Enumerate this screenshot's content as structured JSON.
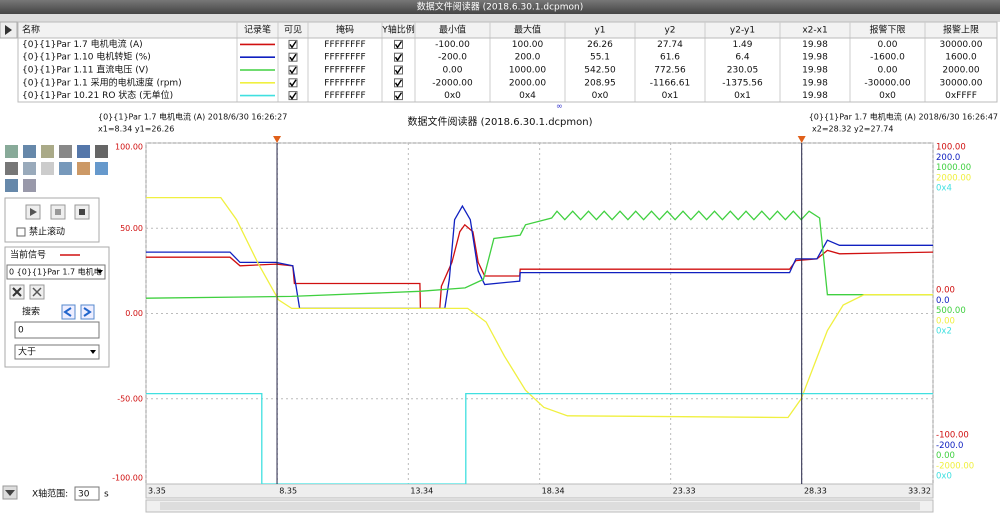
{
  "window": {
    "title": "数据文件阅读器 (2018.6.30.1.dcpmon)"
  },
  "table": {
    "columns": [
      "名称",
      "记录笔",
      "可见",
      "掩码",
      "Y轴比例",
      "最小值",
      "最大值",
      "y1",
      "y2",
      "y2-y1",
      "x2-x1",
      "报警下限",
      "报警上限"
    ],
    "rows": [
      {
        "name": "{0}{1}Par 1.7 电机电流 (A)",
        "color": "#d01010",
        "visible": true,
        "mask": "FFFFFFFF",
        "y_scale": true,
        "min": "-100.00",
        "max": "100.00",
        "y1": "26.26",
        "y2": "27.74",
        "dy": "1.49",
        "dx": "19.98",
        "alarm_low": "0.00",
        "alarm_high": "30000.00"
      },
      {
        "name": "{0}{1}Par 1.10 电机转矩 (%)",
        "color": "#1020c0",
        "visible": true,
        "mask": "FFFFFFFF",
        "y_scale": true,
        "min": "-200.0",
        "max": "200.0",
        "y1": "55.1",
        "y2": "61.6",
        "dy": "6.4",
        "dx": "19.98",
        "alarm_low": "-1600.0",
        "alarm_high": "1600.0"
      },
      {
        "name": "{0}{1}Par 1.11 直流电压 (V)",
        "color": "#40d040",
        "visible": true,
        "mask": "FFFFFFFF",
        "y_scale": true,
        "min": "0.00",
        "max": "1000.00",
        "y1": "542.50",
        "y2": "772.56",
        "dy": "230.05",
        "dx": "19.98",
        "alarm_low": "0.00",
        "alarm_high": "2000.00"
      },
      {
        "name": "{0}{1}Par 1.1 采用的电机速度 (rpm)",
        "color": "#f0f040",
        "visible": true,
        "mask": "FFFFFFFF",
        "y_scale": true,
        "min": "-2000.00",
        "max": "2000.00",
        "y1": "208.95",
        "y2": "-1166.61",
        "dy": "-1375.56",
        "dx": "19.98",
        "alarm_low": "-30000.00",
        "alarm_high": "30000.00"
      },
      {
        "name": "{0}{1}Par 10.21 RO 状态 (无单位)",
        "color": "#40e0e0",
        "visible": true,
        "mask": "FFFFFFFF",
        "y_scale": true,
        "min": "0x0",
        "max": "0x4",
        "y1": "0x0",
        "y2": "0x1",
        "dy": "0x1",
        "dx": "19.98",
        "alarm_low": "0x0",
        "alarm_high": "0xFFFF"
      }
    ]
  },
  "plot": {
    "title": "数据文件阅读器 (2018.6.30.1.dcpmon)",
    "cursor1": {
      "label": "{0}{1}Par 1.7 电机电流 (A) 2018/6/30 16:26:27",
      "readout": "x1=8.34 y1=26.26",
      "x": 8.34
    },
    "cursor2": {
      "label": "{0}{1}Par 1.7 电机电流 (A) 2018/6/30 16:26:47",
      "readout": "x2=28.32 y2=27.74",
      "x": 28.32
    },
    "xlim": [
      3.35,
      33.32
    ],
    "ylim": [
      -100,
      100
    ],
    "xticks": [
      3.35,
      8.35,
      13.34,
      18.34,
      23.33,
      28.33,
      33.32
    ],
    "yticks": [
      {
        "value": 100,
        "label": "100.00"
      },
      {
        "value": 50,
        "label": "50.00"
      },
      {
        "value": 0,
        "label": "0.00"
      },
      {
        "value": -50,
        "label": "-50.00"
      },
      {
        "value": -100,
        "label": "-100.00"
      }
    ],
    "traces": [
      {
        "axis_top": "100.00",
        "axis_mid": "0.00",
        "axis_bottom": "-100.00",
        "x": [
          3.35,
          6.55,
          6.93,
          8.3,
          8.94,
          9.0,
          13.78,
          13.8,
          14.54,
          14.6,
          15.0,
          15.3,
          15.49,
          15.8,
          16.0,
          16.25,
          17.58,
          17.6,
          27.86,
          28.1,
          28.9,
          29.3,
          29.76,
          33.32
        ],
        "y": [
          33,
          33,
          28,
          29,
          28,
          17.6,
          17.6,
          3,
          3,
          16,
          30,
          48,
          52,
          48,
          30,
          22,
          22,
          26,
          26,
          31,
          32,
          37,
          35,
          36
        ]
      },
      {
        "axis_top": "200.0",
        "axis_mid": "0.0",
        "axis_bottom": "-200.0",
        "x": [
          3.35,
          6.55,
          6.93,
          8.3,
          8.94,
          9.2,
          14.73,
          14.9,
          15.1,
          15.4,
          15.7,
          16.0,
          16.25,
          17.58,
          17.6,
          27.86,
          28.1,
          28.9,
          29.3,
          29.76,
          33.32
        ],
        "y": [
          36,
          36,
          30,
          30,
          28,
          3,
          3,
          20,
          55,
          63,
          55,
          25,
          17,
          19,
          24,
          24,
          32,
          32,
          43,
          40,
          40
        ]
      },
      {
        "axis_top": "1000.00",
        "axis_mid": "500.00",
        "axis_bottom": "0.00",
        "x": [
          3.35,
          8.9,
          13.78,
          15.5,
          16.2,
          16.6,
          17.6,
          17.8,
          18.8,
          19.0,
          19.3,
          19.6,
          19.9,
          20.2,
          20.5,
          20.8,
          21.1,
          21.4,
          21.7,
          22.0,
          22.3,
          22.6,
          22.9,
          23.2,
          23.5,
          23.8,
          24.1,
          24.4,
          24.7,
          25.0,
          25.3,
          25.6,
          25.9,
          26.2,
          26.5,
          26.8,
          27.1,
          27.4,
          27.7,
          28.0,
          28.3,
          28.6,
          29.0,
          29.3,
          33.32
        ],
        "y": [
          9,
          10,
          13,
          15,
          20,
          44,
          46,
          52,
          56,
          60,
          55,
          60,
          55,
          60,
          55,
          60,
          55,
          60,
          55,
          60,
          55,
          60,
          55,
          60,
          55,
          60,
          55,
          60,
          55,
          60,
          55,
          60,
          55,
          60,
          55,
          60,
          55,
          60,
          55,
          60,
          55,
          60,
          56,
          11,
          11
        ]
      },
      {
        "axis_top": "2000.00",
        "axis_mid": "0.00",
        "axis_bottom": "-2000.00",
        "x": [
          3.35,
          6.2,
          6.8,
          7.6,
          8.4,
          8.9,
          15.6,
          16.3,
          17.0,
          17.8,
          18.5,
          19.4,
          27.8,
          28.3,
          28.8,
          29.3,
          29.9,
          30.7,
          33.32
        ],
        "y": [
          68,
          68,
          55,
          30,
          8,
          3,
          3,
          -5,
          -25,
          -45,
          -55,
          -60,
          -61,
          -50,
          -30,
          -10,
          5,
          11,
          11
        ]
      },
      {
        "axis_top": "0x4",
        "axis_mid": "0x2",
        "axis_bottom": "0x0",
        "x": [
          3.35,
          7.76,
          7.76,
          15.53,
          15.53,
          33.32
        ],
        "y": [
          -47,
          -47,
          -100,
          -100,
          -47,
          -47
        ]
      }
    ]
  },
  "sidebar": {
    "scroll_lock": "禁止滚动",
    "current_signal": "当前信号",
    "signal_select": "0 {0}{1}Par 1.7 电机电",
    "search": "搜索",
    "search_value": "0",
    "condition": "大于",
    "x_range_label": "X轴范围:",
    "x_range": "30",
    "x_range_unit": "s"
  }
}
